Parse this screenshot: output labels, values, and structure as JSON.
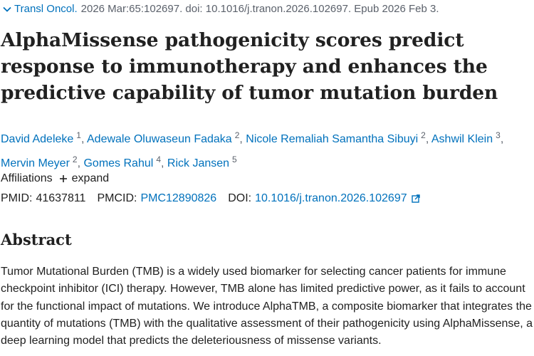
{
  "citation": {
    "journal": "Transl Oncol.",
    "details": "2026 Mar:65:102697. doi: 10.1016/j.tranon.2026.102697. Epub 2026 Feb 3."
  },
  "title": "AlphaMissense pathogenicity scores predict response to immunotherapy and enhances the predictive capability of tumor mutation burden",
  "authors": [
    {
      "name": "David Adeleke",
      "aff": "1"
    },
    {
      "name": "Adewale Oluwaseun Fadaka",
      "aff": "2"
    },
    {
      "name": "Nicole Remaliah Samantha Sibuyi",
      "aff": "2"
    },
    {
      "name": "Ashwil Klein",
      "aff": "3"
    },
    {
      "name": "Mervin Meyer",
      "aff": "2"
    },
    {
      "name": "Gomes Rahul",
      "aff": "4"
    },
    {
      "name": "Rick Jansen",
      "aff": "5"
    }
  ],
  "affiliations": {
    "label": "Affiliations",
    "toggle": "expand"
  },
  "identifiers": {
    "pmid_label": "PMID:",
    "pmid": "41637811",
    "pmcid_label": "PMCID:",
    "pmcid": "PMC12890826",
    "doi_label": "DOI:",
    "doi": "10.1016/j.tranon.2026.102697"
  },
  "abstract": {
    "heading": "Abstract",
    "text": "Tumor Mutational Burden (TMB) is a widely used biomarker for selecting cancer patients for immune checkpoint inhibitor (ICI) therapy. However, TMB alone has limited predictive power, as it fails to account for the functional impact of mutations. We introduce AlphaTMB, a composite biomarker that integrates the quantity of mutations (TMB) with the qualitative assessment of their pathogenicity using AlphaMissense, a deep learning model that predicts the deleteriousness of missense variants."
  },
  "icons": [
    "chevron-down-icon",
    "plus-icon",
    "external-link-icon"
  ],
  "colors": {
    "link": "#0071bc",
    "text": "#212121",
    "muted": "#5b616b"
  }
}
